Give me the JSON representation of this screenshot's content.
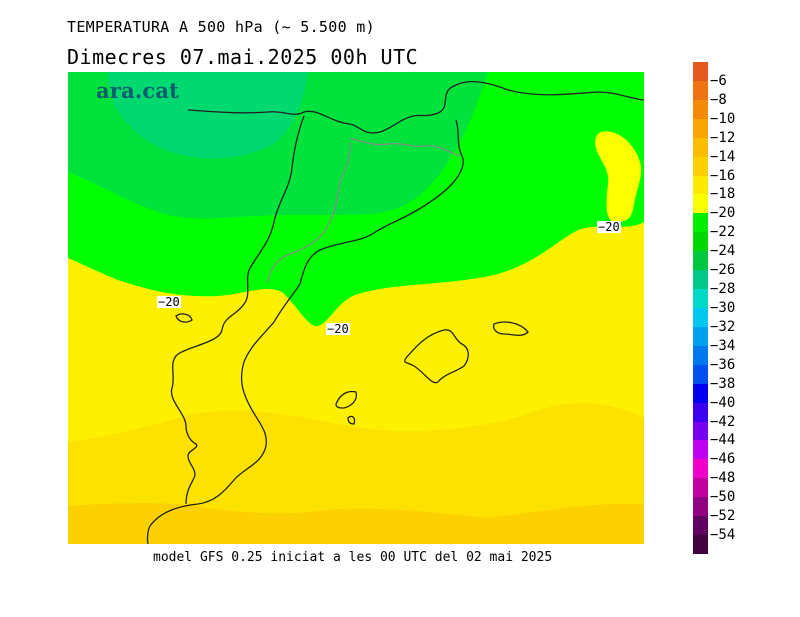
{
  "title_line1": "TEMPERATURA A 500 hPa (~ 5.500 m)",
  "title_line2": "Dimecres  07.mai.2025 00h UTC",
  "logo": "ara.cat",
  "footer": "model GFS 0.25 iniciat a les 00 UTC del 02 mai 2025",
  "contour_labels": [
    "−20",
    "−20",
    "−20"
  ],
  "legend": {
    "labels": [
      "−6",
      "−8",
      "−10",
      "−12",
      "−14",
      "−16",
      "−18",
      "−20",
      "−22",
      "−24",
      "−26",
      "−28",
      "−30",
      "−32",
      "−34",
      "−36",
      "−38",
      "−40",
      "−42",
      "−44",
      "−46",
      "−48",
      "−50",
      "−52",
      "−54"
    ],
    "colors": [
      "#e4591d",
      "#ee7311",
      "#f48a07",
      "#f8a500",
      "#fbbd00",
      "#fdd100",
      "#fbeb00",
      "#faff00",
      "#00ee00",
      "#00d800",
      "#00c840",
      "#00c888",
      "#00d8c8",
      "#00c8f0",
      "#00a0f0",
      "#0078f0",
      "#0050f0",
      "#0000f0",
      "#3c00f0",
      "#7800f0",
      "#c000f0",
      "#f000c8",
      "#c000a0",
      "#900080",
      "#600060",
      "#400040"
    ]
  },
  "map_colors": {
    "yellow": "#fcff00",
    "yellow2": "#fdf000",
    "yellow3": "#fde200",
    "orange": "#fdd000",
    "green_bright": "#00ff00",
    "green": "#00e23c",
    "green_teal": "#00d870",
    "coast": "#222222",
    "border": "#888888"
  }
}
